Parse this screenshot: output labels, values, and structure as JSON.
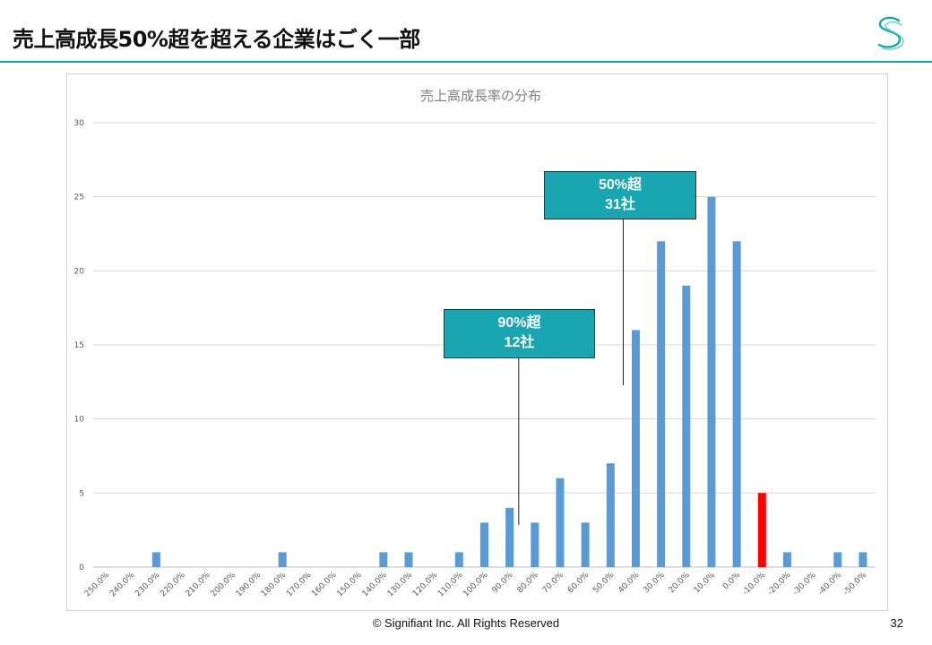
{
  "slide": {
    "title": "売上高成長50%超を超える企業はごく一部",
    "footer": "© Signifiant Inc. All Rights Reserved",
    "page_number": "32",
    "accent_color": "#17a6b2"
  },
  "callouts": [
    {
      "line1": "50%超",
      "line2": "31社",
      "anchor_category": "40.0%"
    },
    {
      "line1": "90%超",
      "line2": "12社",
      "anchor_category": "80.0%"
    }
  ],
  "chart_data": {
    "type": "bar",
    "title": "売上高成長率の分布",
    "xlabel": "",
    "ylabel": "",
    "ylim": [
      0,
      30
    ],
    "yticks": [
      0,
      5,
      10,
      15,
      20,
      25,
      30
    ],
    "grid": true,
    "bar_color": "#5b9bd5",
    "highlight_color": "#ff0000",
    "highlight_category": "-10.0%",
    "categories": [
      "250.0%",
      "240.0%",
      "230.0%",
      "220.0%",
      "210.0%",
      "200.0%",
      "190.0%",
      "180.0%",
      "170.0%",
      "160.0%",
      "150.0%",
      "140.0%",
      "130.0%",
      "120.0%",
      "110.0%",
      "100.0%",
      "90.0%",
      "80.0%",
      "70.0%",
      "60.0%",
      "50.0%",
      "40.0%",
      "30.0%",
      "20.0%",
      "10.0%",
      "0.0%",
      "-10.0%",
      "-20.0%",
      "-30.0%",
      "-40.0%",
      "-50.0%"
    ],
    "values": [
      0,
      0,
      1,
      0,
      0,
      0,
      0,
      1,
      0,
      0,
      0,
      1,
      1,
      0,
      1,
      3,
      4,
      3,
      6,
      3,
      7,
      16,
      22,
      19,
      25,
      22,
      5,
      1,
      0,
      1,
      1
    ]
  }
}
